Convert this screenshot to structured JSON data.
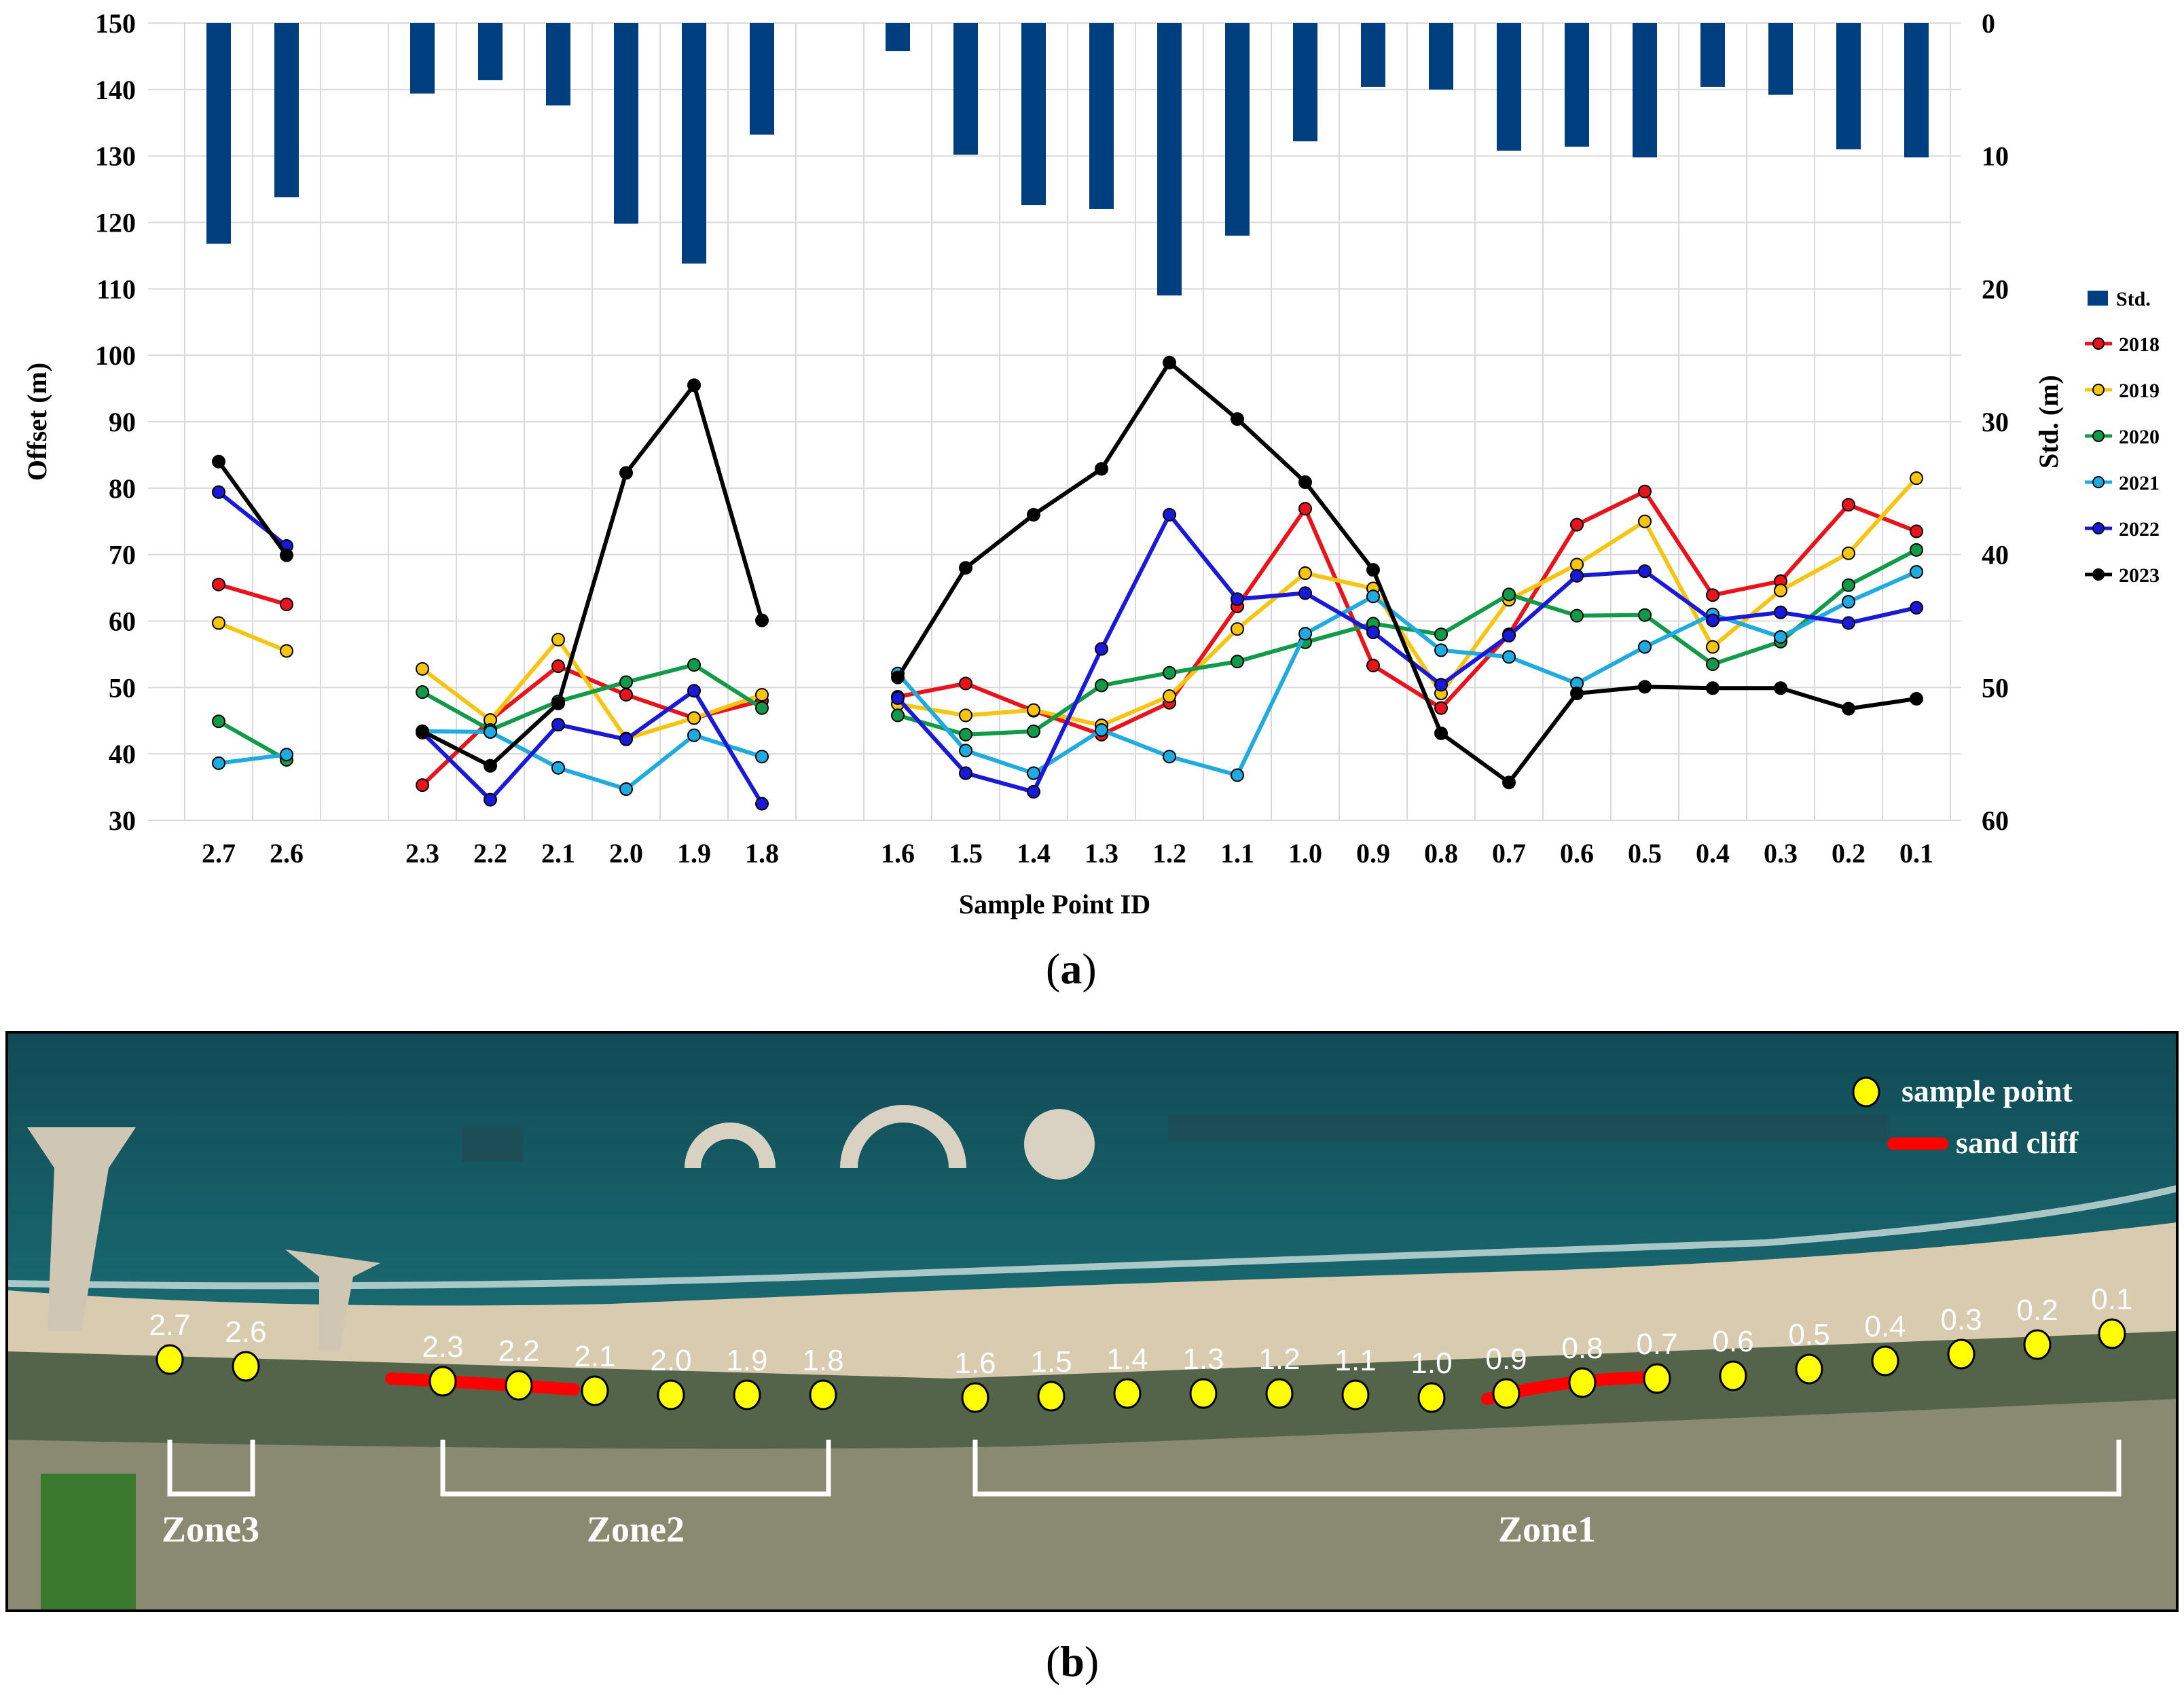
{
  "chart_data": {
    "type": "line+bar",
    "xlabel": "Sample Point ID",
    "ylabel_left": "Offset (m)",
    "ylabel_right": "Std. (m)",
    "ylim_left": [
      30,
      150
    ],
    "yticks_left": [
      30,
      40,
      50,
      60,
      70,
      80,
      90,
      100,
      110,
      120,
      130,
      140,
      150
    ],
    "ylim_right_inverted": [
      0,
      60
    ],
    "yticks_right": [
      0,
      10,
      20,
      30,
      40,
      50,
      60
    ],
    "categories": [
      "2.7",
      "2.6",
      "",
      "2.3",
      "2.2",
      "2.1",
      "2.0",
      "1.9",
      "1.8",
      "",
      "1.6",
      "1.5",
      "1.4",
      "1.3",
      "1.2",
      "1.1",
      "1.0",
      "0.9",
      "0.8",
      "0.7",
      "0.6",
      "0.5",
      "0.4",
      "0.3",
      "0.2",
      "0.1"
    ],
    "segments": [
      [
        0,
        1
      ],
      [
        3,
        8
      ],
      [
        10,
        25
      ]
    ],
    "std": [
      16.6,
      13.1,
      null,
      5.3,
      4.3,
      6.2,
      15.1,
      18.1,
      8.4,
      null,
      2.1,
      9.9,
      13.7,
      14.0,
      20.5,
      16.0,
      8.9,
      4.8,
      5.0,
      9.6,
      9.3,
      10.1,
      4.8,
      5.4,
      9.5,
      10.1
    ],
    "series": [
      {
        "name": "2018",
        "color": "#e8141b",
        "values": [
          65.5,
          62.5,
          null,
          35.3,
          45.1,
          53.2,
          48.9,
          45.4,
          48.0,
          null,
          48.6,
          50.6,
          46.5,
          42.9,
          47.7,
          62.2,
          76.9,
          53.3,
          46.9,
          58.0,
          74.5,
          79.5,
          63.9,
          66.0,
          77.5,
          73.5
        ]
      },
      {
        "name": "2019",
        "color": "#f7c40f",
        "values": [
          59.7,
          55.5,
          null,
          52.8,
          45.1,
          57.2,
          42.3,
          45.4,
          48.9,
          null,
          47.5,
          45.8,
          46.6,
          44.3,
          48.7,
          58.8,
          67.2,
          64.9,
          49.1,
          63.2,
          68.5,
          75.0,
          56.1,
          64.6,
          70.2,
          81.5
        ]
      },
      {
        "name": "2020",
        "color": "#119b48",
        "values": [
          44.9,
          39.1,
          null,
          49.3,
          43.6,
          47.9,
          50.8,
          53.4,
          46.9,
          null,
          45.8,
          42.9,
          43.4,
          50.3,
          52.2,
          53.9,
          56.8,
          59.6,
          58.0,
          64.0,
          60.8,
          60.9,
          53.5,
          56.9,
          65.4,
          70.7
        ]
      },
      {
        "name": "2021",
        "color": "#1faae0",
        "values": [
          38.6,
          39.9,
          null,
          43.4,
          43.3,
          37.9,
          34.7,
          42.8,
          39.6,
          null,
          52.1,
          40.5,
          37.1,
          43.6,
          39.6,
          36.8,
          58.1,
          63.7,
          55.6,
          54.6,
          50.6,
          56.1,
          61.0,
          57.6,
          62.9,
          67.4
        ]
      },
      {
        "name": "2022",
        "color": "#1a1ad6",
        "values": [
          79.4,
          71.3,
          null,
          43.2,
          33.1,
          44.4,
          42.2,
          49.5,
          32.5,
          null,
          48.4,
          37.1,
          34.3,
          55.8,
          76.0,
          63.3,
          64.2,
          58.3,
          50.4,
          57.8,
          66.8,
          67.5,
          60.1,
          61.3,
          59.7,
          62.0
        ]
      },
      {
        "name": "2023",
        "color": "#000000",
        "values": [
          84.0,
          69.9,
          null,
          43.4,
          38.2,
          47.6,
          82.3,
          95.5,
          60.1,
          null,
          51.5,
          68.0,
          76.0,
          82.9,
          98.9,
          90.4,
          80.9,
          67.7,
          43.1,
          35.7,
          49.1,
          50.1,
          49.9,
          49.9,
          46.8,
          48.3
        ]
      }
    ],
    "legend": [
      "Std.",
      "2018",
      "2019",
      "2020",
      "2021",
      "2022",
      "2023"
    ],
    "legend_position": "right",
    "std_color": "#003f7f"
  },
  "panel_labels": {
    "a_open": "(",
    "a_letter": "a",
    "a_close": ")",
    "b_open": "(",
    "b_letter": "b",
    "b_close": ")"
  },
  "map": {
    "legend_sample": "sample point",
    "legend_cliff": "sand cliff",
    "point_labels": [
      "2.7",
      "2.6",
      "2.3",
      "2.2",
      "2.1",
      "2.0",
      "1.9",
      "1.8",
      "1.6",
      "1.5",
      "1.4",
      "1.3",
      "1.2",
      "1.1",
      "1.0",
      "0.9",
      "0.8",
      "0.7",
      "0.6",
      "0.5",
      "0.4",
      "0.3",
      "0.2",
      "0.1"
    ],
    "zones": [
      "Zone3",
      "Zone2",
      "Zone1"
    ],
    "point_color": "#ffff00",
    "cliff_color": "#ff0000"
  }
}
